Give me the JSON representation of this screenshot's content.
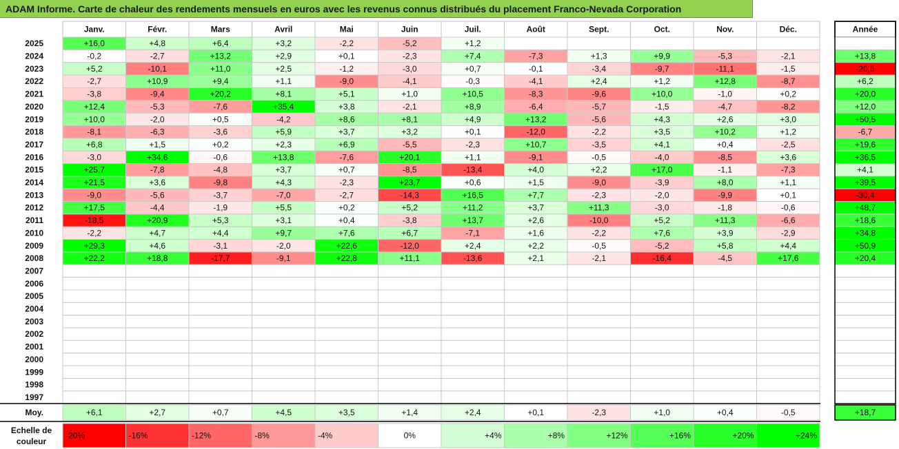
{
  "title": "ADAM Informe. Carte de chaleur des rendements mensuels en euros avec les revenus connus distribués du placement Franco-Nevada Corporation",
  "colors": {
    "header_green": "#92d050",
    "max_green": "#00ff00",
    "max_red": "#ff0000",
    "neutral": "#ffffff"
  },
  "chart_data": {
    "type": "heatmap",
    "title": "ADAM Informe. Carte de chaleur des rendements mensuels en euros avec les revenus connus distribués du placement Franco-Nevada Corporation",
    "month_labels": [
      "Janv.",
      "Févr.",
      "Mars",
      "Avril",
      "Mai",
      "Juin",
      "Juil.",
      "Août",
      "Sept.",
      "Oct.",
      "Nov.",
      "Déc."
    ],
    "year_column_label": "Année",
    "years": [
      "2025",
      "2024",
      "2023",
      "2022",
      "2021",
      "2020",
      "2019",
      "2018",
      "2017",
      "2016",
      "2015",
      "2014",
      "2013",
      "2012",
      "2011",
      "2010",
      "2009",
      "2008",
      "2007",
      "2006",
      "2005",
      "2004",
      "2003",
      "2002",
      "2001",
      "2000",
      "1999",
      "1998",
      "1997"
    ],
    "cells": [
      [
        "+16,0",
        "+4,8",
        "+6,4",
        "+3,2",
        "-2,2",
        "-5,2",
        "+1,2",
        "",
        "",
        "",
        "",
        ""
      ],
      [
        "-0,2",
        "-2,7",
        "+13,2",
        "+2,9",
        "+0,1",
        "-2,3",
        "+7,4",
        "-7,3",
        "+1,3",
        "+9,9",
        "-5,3",
        "-2,1"
      ],
      [
        "+5,2",
        "-10,1",
        "+11,0",
        "+2,5",
        "-1,2",
        "-3,0",
        "+0,7",
        "-0,1",
        "-3,4",
        "-9,7",
        "-11,1",
        "-1,5"
      ],
      [
        "-2,7",
        "+10,9",
        "+9,4",
        "+1,1",
        "-9,0",
        "-4,1",
        "-0,3",
        "-4,1",
        "+2,4",
        "+1,2",
        "+12,8",
        "-8,7"
      ],
      [
        "-3,8",
        "-9,4",
        "+20,2",
        "+8,1",
        "+5,1",
        "+1,0",
        "+10,5",
        "-8,3",
        "-9,6",
        "+10,0",
        "-1,0",
        "+0,2"
      ],
      [
        "+12,4",
        "-5,3",
        "-7,6",
        "+35,4",
        "+3,8",
        "-2,1",
        "+8,9",
        "-6,4",
        "-5,7",
        "-1,5",
        "-4,7",
        "-8,2"
      ],
      [
        "+10,0",
        "-2,0",
        "+0,5",
        "-4,2",
        "+8,6",
        "+8,1",
        "+4,9",
        "+13,2",
        "-5,6",
        "+4,3",
        "+2,6",
        "+3,0"
      ],
      [
        "-8,1",
        "-6,3",
        "-3,6",
        "+5,9",
        "+3,7",
        "+3,2",
        "+0,1",
        "-12,0",
        "-2,2",
        "+3,5",
        "+10,2",
        "+1,2"
      ],
      [
        "+6,8",
        "+1,5",
        "+0,2",
        "+2,3",
        "+6,9",
        "-5,5",
        "-2,3",
        "+10,7",
        "-3,5",
        "+4,1",
        "+0,4",
        "-2,5"
      ],
      [
        "-3,0",
        "+34,6",
        "-0,6",
        "+13,8",
        "-7,6",
        "+20,1",
        "+1,1",
        "-9,1",
        "-0,5",
        "-4,0",
        "-8,5",
        "+3,6"
      ],
      [
        "+25,7",
        "-7,8",
        "-4,8",
        "+3,7",
        "+0,7",
        "-8,5",
        "-13,4",
        "+4,0",
        "+2,2",
        "+17,0",
        "-1,1",
        "-7,3"
      ],
      [
        "+21,5",
        "+3,6",
        "-9,8",
        "+4,3",
        "-2,3",
        "+23,7",
        "+0,6",
        "+1,5",
        "-9,0",
        "-3,9",
        "+8,0",
        "+1,1"
      ],
      [
        "-9,0",
        "-5,6",
        "-3,7",
        "-7,0",
        "-2,7",
        "-14,3",
        "+16,5",
        "+7,7",
        "-2,3",
        "-2,0",
        "-9,9",
        "+0,1"
      ],
      [
        "+17,5",
        "-4,4",
        "-1,9",
        "+5,5",
        "+0,2",
        "+5,2",
        "+11,2",
        "+3,7",
        "+11,3",
        "-3,0",
        "-1,8",
        "-0,6"
      ],
      [
        "-18,5",
        "+20,9",
        "+5,3",
        "+3,1",
        "+0,4",
        "-3,8",
        "+13,7",
        "+2,6",
        "-10,0",
        "+5,2",
        "+11,3",
        "-6,6"
      ],
      [
        "-2,2",
        "+4,7",
        "+4,4",
        "+9,7",
        "+7,6",
        "+6,7",
        "-7,1",
        "+1,6",
        "-2,2",
        "+7,6",
        "+3,9",
        "-2,9"
      ],
      [
        "+29,3",
        "+4,6",
        "-3,1",
        "-2,0",
        "+22,6",
        "-12,0",
        "+2,4",
        "+2,2",
        "-0,5",
        "-5,2",
        "+5,8",
        "+4,4"
      ],
      [
        "+22,2",
        "+18,8",
        "-17,7",
        "-9,1",
        "+22,8",
        "+11,1",
        "-13,6",
        "+2,1",
        "-2,1",
        "-16,4",
        "-4,5",
        "+17,6"
      ],
      [
        "",
        "",
        "",
        "",
        "",
        "",
        "",
        "",
        "",
        "",
        "",
        ""
      ],
      [
        "",
        "",
        "",
        "",
        "",
        "",
        "",
        "",
        "",
        "",
        "",
        ""
      ],
      [
        "",
        "",
        "",
        "",
        "",
        "",
        "",
        "",
        "",
        "",
        "",
        ""
      ],
      [
        "",
        "",
        "",
        "",
        "",
        "",
        "",
        "",
        "",
        "",
        "",
        ""
      ],
      [
        "",
        "",
        "",
        "",
        "",
        "",
        "",
        "",
        "",
        "",
        "",
        ""
      ],
      [
        "",
        "",
        "",
        "",
        "",
        "",
        "",
        "",
        "",
        "",
        "",
        ""
      ],
      [
        "",
        "",
        "",
        "",
        "",
        "",
        "",
        "",
        "",
        "",
        "",
        ""
      ],
      [
        "",
        "",
        "",
        "",
        "",
        "",
        "",
        "",
        "",
        "",
        "",
        ""
      ],
      [
        "",
        "",
        "",
        "",
        "",
        "",
        "",
        "",
        "",
        "",
        "",
        ""
      ],
      [
        "",
        "",
        "",
        "",
        "",
        "",
        "",
        "",
        "",
        "",
        "",
        ""
      ],
      [
        "",
        "",
        "",
        "",
        "",
        "",
        "",
        "",
        "",
        "",
        "",
        ""
      ]
    ],
    "annual": [
      "",
      "+13,8",
      "-20,5",
      "+6,2",
      "+20,0",
      "+12,0",
      "+50,5",
      "-6,7",
      "+19,6",
      "+36,5",
      "+4,1",
      "+39,5",
      "-30,4",
      "+48,7",
      "+18,6",
      "+34,8",
      "+50,9",
      "+20,4",
      "",
      "",
      "",
      "",
      "",
      "",
      "",
      "",
      "",
      "",
      ""
    ],
    "average_label": "Moy.",
    "averages": [
      "+6,1",
      "+2,7",
      "+0,7",
      "+4,5",
      "+3,5",
      "+1,4",
      "+2,4",
      "+0,1",
      "-2,3",
      "+1,0",
      "+0,4",
      "-0,5"
    ],
    "average_annual": "+18,7",
    "scale_label_line1": "Echelle de",
    "scale_label_line2": "couleur",
    "scale": [
      "-20%",
      "-16%",
      "-12%",
      "-8%",
      "-4%",
      "0%",
      "+4%",
      "+8%",
      "+12%",
      "+16%",
      "+20%",
      "+24%"
    ],
    "color_range": [
      -20,
      24
    ]
  }
}
